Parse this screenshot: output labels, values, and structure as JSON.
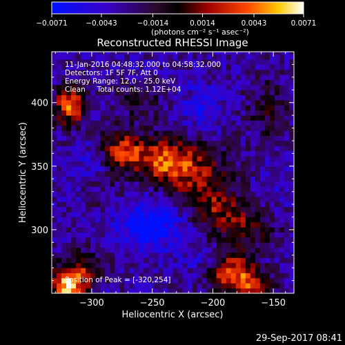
{
  "chart_data": {
    "type": "heatmap",
    "title": "Reconstructed RHESSI Image",
    "xlabel": "Heliocentric X (arcsec)",
    "ylabel": "Heliocentric Y (arcsec)",
    "xlim": [
      -333,
      -133
    ],
    "ylim": [
      250,
      440
    ],
    "x_ticks": [
      {
        "value": -300,
        "label": "−300"
      },
      {
        "value": -250,
        "label": "−250"
      },
      {
        "value": -200,
        "label": "−200"
      },
      {
        "value": -150,
        "label": "−150"
      }
    ],
    "y_ticks": [
      {
        "value": 300,
        "label": "300"
      },
      {
        "value": 350,
        "label": "350"
      },
      {
        "value": 400,
        "label": "400"
      }
    ],
    "colorbar": {
      "min": -0.0071,
      "max": 0.0071,
      "ticks": [
        {
          "value": -0.0071,
          "label": "−0.0071"
        },
        {
          "value": -0.0043,
          "label": "−0.0043"
        },
        {
          "value": -0.0014,
          "label": "−0.0014"
        },
        {
          "value": 0.0014,
          "label": "0.0014"
        },
        {
          "value": 0.0043,
          "label": "0.0043"
        },
        {
          "value": 0.0071,
          "label": "0.0071"
        }
      ],
      "unit_label": "(photons cm⁻² s⁻¹ asec⁻²)"
    },
    "annotations": {
      "time_range": "11-Jan-2016 04:48:32.000 to 04:58:32.000",
      "detectors": "Detectors: 1F 5F 7F, Att 0",
      "energy_range": "Energy Range: 12.0 - 25.0 keV",
      "clean_counts": "Clean     Total counts: 1.12E+04",
      "peak": "Position of Peak = [-320,254]"
    },
    "peak_position": [
      -320,
      254
    ],
    "blobs": [
      {
        "x": -318,
        "y": 398,
        "sx": 9,
        "sy": 11,
        "amp": 0.0072
      },
      {
        "x": -275,
        "y": 363,
        "sx": 13,
        "sy": 10,
        "amp": 0.0058
      },
      {
        "x": -240,
        "y": 355,
        "sx": 18,
        "sy": 12,
        "amp": 0.006
      },
      {
        "x": -212,
        "y": 342,
        "sx": 22,
        "sy": 16,
        "amp": 0.0042
      },
      {
        "x": -260,
        "y": 400,
        "sx": 15,
        "sy": 12,
        "amp": 0.0022
      },
      {
        "x": -175,
        "y": 302,
        "sx": 20,
        "sy": 12,
        "amp": 0.0038
      },
      {
        "x": -198,
        "y": 318,
        "sx": 15,
        "sy": 10,
        "amp": 0.003
      },
      {
        "x": -320,
        "y": 256,
        "sx": 10,
        "sy": 10,
        "amp": 0.009
      },
      {
        "x": -305,
        "y": 270,
        "sx": 12,
        "sy": 10,
        "amp": 0.0035
      },
      {
        "x": -185,
        "y": 266,
        "sx": 13,
        "sy": 11,
        "amp": 0.007
      },
      {
        "x": -165,
        "y": 255,
        "sx": 10,
        "sy": 9,
        "amp": 0.005
      },
      {
        "x": -155,
        "y": 395,
        "sx": 12,
        "sy": 20,
        "amp": 0.0026
      },
      {
        "x": -290,
        "y": 330,
        "sx": 12,
        "sy": 10,
        "amp": 0.0012
      },
      {
        "x": -250,
        "y": 305,
        "sx": 20,
        "sy": 14,
        "amp": -0.004
      },
      {
        "x": -300,
        "y": 355,
        "sx": 9,
        "sy": 9,
        "amp": -0.002
      },
      {
        "x": -210,
        "y": 395,
        "sx": 14,
        "sy": 12,
        "amp": -0.002
      },
      {
        "x": -205,
        "y": 275,
        "sx": 14,
        "sy": 10,
        "amp": -0.0012
      },
      {
        "x": -150,
        "y": 340,
        "sx": 12,
        "sy": 18,
        "amp": -0.001
      }
    ]
  },
  "footer": {
    "timestamp": "29-Sep-2017 08:41"
  }
}
